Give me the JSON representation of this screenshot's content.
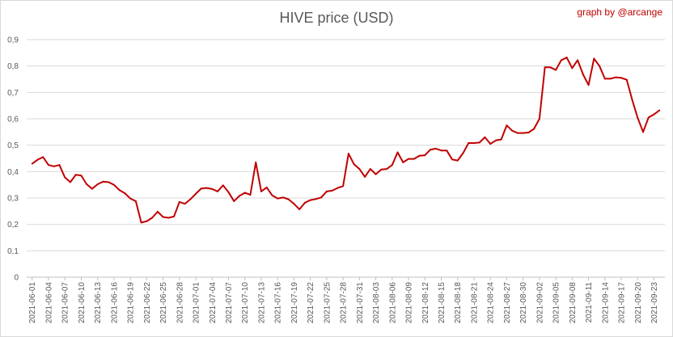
{
  "chart_data": {
    "type": "line",
    "title": "HIVE price (USD)",
    "credit": "graph by @arcange",
    "xlabel": "",
    "ylabel": "",
    "ylim": [
      0,
      0.9
    ],
    "y_ticks": [
      "0",
      "0,1",
      "0,2",
      "0,3",
      "0,4",
      "0,5",
      "0,6",
      "0,7",
      "0,8",
      "0,9"
    ],
    "grid": "horizontal",
    "line_color": "#c00000",
    "x_tick_labels": [
      "2021-06-01",
      "2021-06-04",
      "2021-06-07",
      "2021-06-10",
      "2021-06-13",
      "2021-06-16",
      "2021-06-19",
      "2021-06-22",
      "2021-06-25",
      "2021-06-28",
      "2021-07-01",
      "2021-07-04",
      "2021-07-07",
      "2021-07-10",
      "2021-07-13",
      "2021-07-16",
      "2021-07-19",
      "2021-07-22",
      "2021-07-25",
      "2021-07-28",
      "2021-07-31",
      "2021-08-03",
      "2021-08-06",
      "2021-08-09",
      "2021-08-12",
      "2021-08-15",
      "2021-08-18",
      "2021-08-21",
      "2021-08-24",
      "2021-08-27",
      "2021-08-30",
      "2021-09-02",
      "2021-09-05",
      "2021-09-08",
      "2021-09-11",
      "2021-09-14",
      "2021-09-17",
      "2021-09-20",
      "2021-09-23"
    ],
    "series": [
      {
        "values": [
          0.43,
          0.445,
          0.455,
          0.425,
          0.42,
          0.425,
          0.378,
          0.36,
          0.388,
          0.385,
          0.352,
          0.335,
          0.352,
          0.362,
          0.36,
          0.35,
          0.33,
          0.318,
          0.298,
          0.288,
          0.207,
          0.212,
          0.225,
          0.248,
          0.228,
          0.225,
          0.23,
          0.285,
          0.278,
          0.295,
          0.316,
          0.336,
          0.338,
          0.334,
          0.325,
          0.348,
          0.322,
          0.288,
          0.308,
          0.32,
          0.312,
          0.435,
          0.325,
          0.34,
          0.31,
          0.298,
          0.302,
          0.295,
          0.278,
          0.257,
          0.282,
          0.292,
          0.296,
          0.302,
          0.325,
          0.328,
          0.338,
          0.345,
          0.468,
          0.428,
          0.41,
          0.38,
          0.41,
          0.39,
          0.408,
          0.41,
          0.425,
          0.473,
          0.435,
          0.448,
          0.448,
          0.46,
          0.462,
          0.483,
          0.487,
          0.48,
          0.48,
          0.446,
          0.442,
          0.47,
          0.508,
          0.508,
          0.51,
          0.53,
          0.505,
          0.518,
          0.522,
          0.575,
          0.555,
          0.546,
          0.546,
          0.548,
          0.562,
          0.6,
          0.795,
          0.795,
          0.785,
          0.822,
          0.832,
          0.792,
          0.822,
          0.768,
          0.728,
          0.828,
          0.8,
          0.752,
          0.752,
          0.757,
          0.755,
          0.748,
          0.672,
          0.604,
          0.55,
          0.605,
          0.617,
          0.632
        ]
      }
    ]
  }
}
